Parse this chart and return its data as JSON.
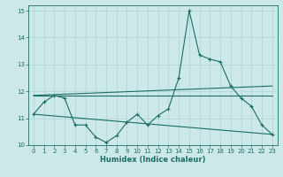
{
  "title": "",
  "xlabel": "Humidex (Indice chaleur)",
  "ylabel": "",
  "background_color": "#cce8e8",
  "grid_color": "#aad4d4",
  "line_color": "#1a6e64",
  "xlim": [
    -0.5,
    23.5
  ],
  "ylim": [
    10,
    15.2
  ],
  "yticks": [
    10,
    11,
    12,
    13,
    14,
    15
  ],
  "xticks": [
    0,
    1,
    2,
    3,
    4,
    5,
    6,
    7,
    8,
    9,
    10,
    11,
    12,
    13,
    14,
    15,
    16,
    17,
    18,
    19,
    20,
    21,
    22,
    23
  ],
  "line1_x": [
    0,
    1,
    2,
    3,
    4,
    5,
    6,
    7,
    8,
    9,
    10,
    11,
    12,
    13,
    14,
    15,
    16,
    17,
    18,
    19,
    20,
    21,
    22,
    23
  ],
  "line1_y": [
    11.15,
    11.6,
    11.85,
    11.75,
    10.75,
    10.75,
    10.3,
    10.1,
    10.35,
    10.85,
    11.15,
    10.75,
    11.1,
    11.35,
    12.5,
    15.0,
    13.35,
    13.2,
    13.1,
    12.2,
    11.75,
    11.45,
    10.75,
    10.4
  ],
  "line2_x": [
    0,
    23
  ],
  "line2_y": [
    11.85,
    11.85
  ],
  "line3_x": [
    0,
    23
  ],
  "line3_y": [
    11.15,
    10.4
  ],
  "line4_x": [
    0,
    23
  ],
  "line4_y": [
    11.85,
    12.2
  ],
  "xlabel_fontsize": 6,
  "tick_fontsize": 5
}
